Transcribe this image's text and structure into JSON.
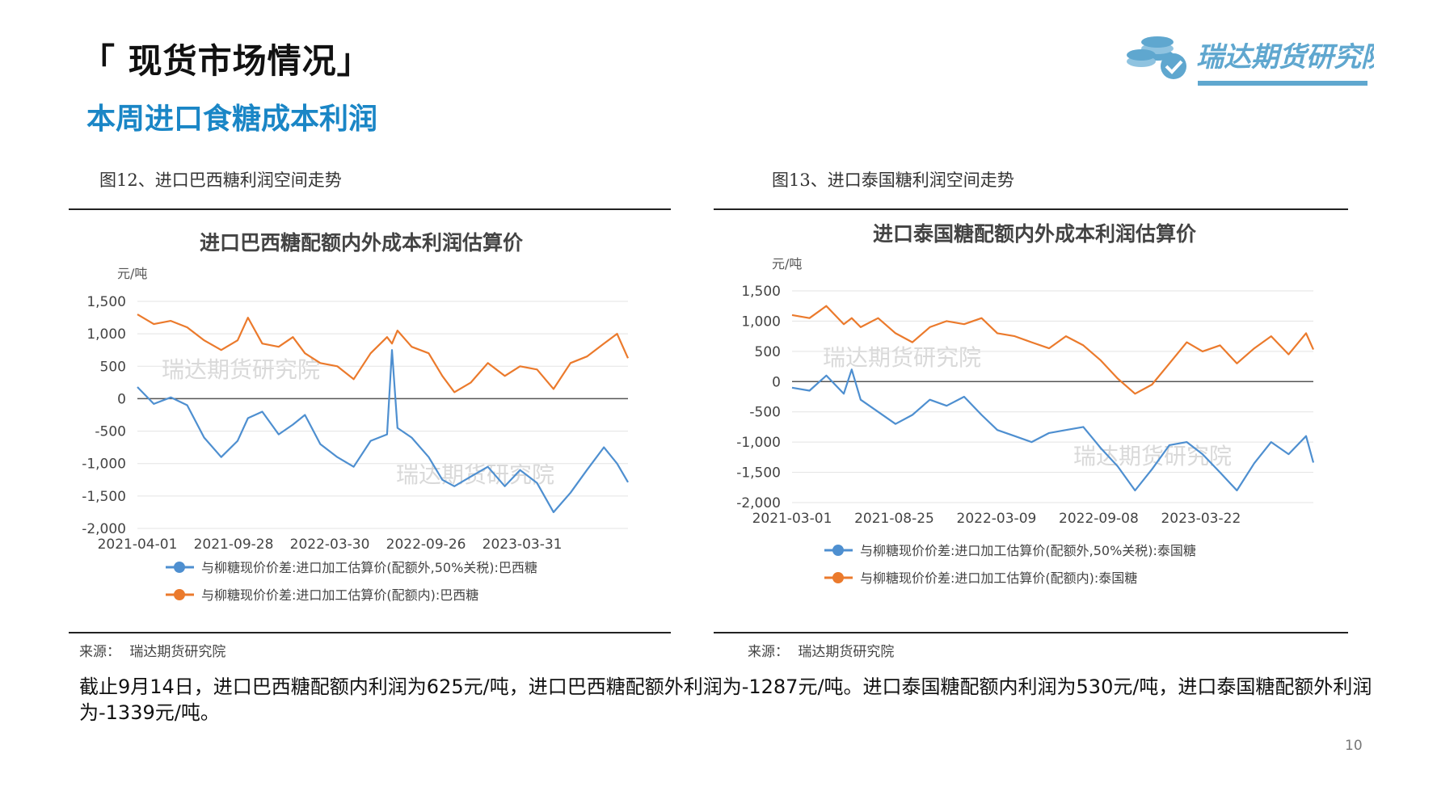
{
  "page": {
    "section_title": "「 现货市场情况」",
    "subtitle": "本周进口食糖成本利润",
    "logo_text": "瑞达期货研究院",
    "summary": "截止9月14日，进口巴西糖配额内利润为625元/吨，进口巴西糖配额外利润为-1287元/吨。进口泰国糖配额内利润为530元/吨，进口泰国糖配额外利润为-1339元/吨。",
    "page_number": "10"
  },
  "figures": [
    {
      "caption": "图12、进口巴西糖利润空间走势",
      "source_label": "来源：",
      "source_name": "瑞达期货研究院"
    },
    {
      "caption": "图13、进口泰国糖利润空间走势",
      "source_label": "来源：",
      "source_name": "瑞达期货研究院"
    }
  ],
  "colors": {
    "blue_series": "#4e8fd0",
    "orange_series": "#eb7a2c",
    "accent": "#1a86c6",
    "logo": "#5fa7cf"
  },
  "chart_data": [
    {
      "type": "line",
      "title": "进口巴西糖配额内外成本利润估算价",
      "ylabel": "元/吨",
      "watermark": "瑞达期货研究院",
      "ylim": [
        -2000,
        1500
      ],
      "yticks": [
        1500,
        1000,
        500,
        0,
        -500,
        -1000,
        -1500,
        -2000
      ],
      "ytick_labels": [
        "1,500",
        "1,000",
        "500",
        "0",
        "-500",
        "-1,000",
        "-1,500",
        "-2,000"
      ],
      "xlim": [
        "2021-04-01",
        "2023-09-14"
      ],
      "xtick_labels": [
        "2021-04-01",
        "2021-09-28",
        "2022-03-30",
        "2022-09-26",
        "2023-03-31"
      ],
      "grid": true,
      "legend_position": "bottom",
      "series": [
        {
          "name": "与柳糖现价价差:进口加工估算价(配额外,50%关税):巴西糖",
          "color": "#4e8fd0",
          "x": [
            "2021-04-01",
            "2021-05-01",
            "2021-06-01",
            "2021-07-01",
            "2021-08-01",
            "2021-09-01",
            "2021-10-01",
            "2021-10-20",
            "2021-11-15",
            "2021-12-15",
            "2022-01-10",
            "2022-02-01",
            "2022-03-01",
            "2022-04-01",
            "2022-05-01",
            "2022-06-01",
            "2022-07-01",
            "2022-07-10",
            "2022-07-20",
            "2022-08-15",
            "2022-09-15",
            "2022-10-10",
            "2022-11-01",
            "2022-12-01",
            "2023-01-01",
            "2023-02-01",
            "2023-03-01",
            "2023-04-01",
            "2023-05-01",
            "2023-06-01",
            "2023-07-01",
            "2023-08-01",
            "2023-08-25",
            "2023-09-14"
          ],
          "y": [
            180,
            -80,
            20,
            -100,
            -600,
            -900,
            -650,
            -300,
            -200,
            -550,
            -400,
            -250,
            -700,
            -900,
            -1050,
            -650,
            -550,
            750,
            -450,
            -600,
            -900,
            -1250,
            -1350,
            -1200,
            -1050,
            -1350,
            -1100,
            -1300,
            -1750,
            -1450,
            -1100,
            -750,
            -1000,
            -1287
          ]
        },
        {
          "name": "与柳糖现价价差:进口加工估算价(配额内):巴西糖",
          "color": "#eb7a2c",
          "x": [
            "2021-04-01",
            "2021-05-01",
            "2021-06-01",
            "2021-07-01",
            "2021-08-01",
            "2021-09-01",
            "2021-10-01",
            "2021-10-20",
            "2021-11-15",
            "2021-12-15",
            "2022-01-10",
            "2022-02-01",
            "2022-03-01",
            "2022-04-01",
            "2022-05-01",
            "2022-06-01",
            "2022-07-01",
            "2022-07-10",
            "2022-07-20",
            "2022-08-15",
            "2022-09-15",
            "2022-10-10",
            "2022-11-01",
            "2022-12-01",
            "2023-01-01",
            "2023-02-01",
            "2023-03-01",
            "2023-04-01",
            "2023-05-01",
            "2023-06-01",
            "2023-07-01",
            "2023-08-01",
            "2023-08-25",
            "2023-09-14"
          ],
          "y": [
            1300,
            1150,
            1200,
            1100,
            900,
            750,
            900,
            1250,
            850,
            800,
            950,
            700,
            550,
            500,
            300,
            700,
            950,
            850,
            1050,
            800,
            700,
            350,
            100,
            250,
            550,
            350,
            500,
            450,
            150,
            550,
            650,
            850,
            1000,
            625
          ]
        }
      ]
    },
    {
      "type": "line",
      "title": "进口泰国糖配额内外成本利润估算价",
      "ylabel": "元/吨",
      "watermark": "瑞达期货研究院",
      "ylim": [
        -2000,
        1500
      ],
      "yticks": [
        1500,
        1000,
        500,
        0,
        -500,
        -1000,
        -1500,
        -2000
      ],
      "ytick_labels": [
        "1,500",
        "1,000",
        "500",
        "0",
        "-500",
        "-1,000",
        "-1,500",
        "-2,000"
      ],
      "xlim": [
        "2021-03-01",
        "2023-09-14"
      ],
      "xtick_labels": [
        "2021-03-01",
        "2021-08-25",
        "2022-03-09",
        "2022-09-08",
        "2023-03-22"
      ],
      "grid": true,
      "legend_position": "bottom",
      "series": [
        {
          "name": "与柳糖现价价差:进口加工估算价(配额外,50%关税):泰国糖",
          "color": "#4e8fd0",
          "x": [
            "2021-03-01",
            "2021-04-01",
            "2021-05-01",
            "2021-06-01",
            "2021-06-15",
            "2021-07-01",
            "2021-08-01",
            "2021-09-01",
            "2021-10-01",
            "2021-11-01",
            "2021-12-01",
            "2022-01-01",
            "2022-02-01",
            "2022-03-01",
            "2022-04-01",
            "2022-05-01",
            "2022-06-01",
            "2022-07-01",
            "2022-08-01",
            "2022-09-01",
            "2022-10-01",
            "2022-11-01",
            "2022-12-01",
            "2023-01-01",
            "2023-02-01",
            "2023-03-01",
            "2023-04-01",
            "2023-05-01",
            "2023-06-01",
            "2023-07-01",
            "2023-08-01",
            "2023-09-01",
            "2023-09-14"
          ],
          "y": [
            -100,
            -150,
            100,
            -200,
            200,
            -300,
            -500,
            -700,
            -550,
            -300,
            -400,
            -250,
            -550,
            -800,
            -900,
            -1000,
            -850,
            -800,
            -750,
            -1100,
            -1400,
            -1800,
            -1450,
            -1050,
            -1000,
            -1200,
            -1500,
            -1800,
            -1350,
            -1000,
            -1200,
            -900,
            -1339
          ]
        },
        {
          "name": "与柳糖现价价差:进口加工估算价(配额内):泰国糖",
          "color": "#eb7a2c",
          "x": [
            "2021-03-01",
            "2021-04-01",
            "2021-05-01",
            "2021-06-01",
            "2021-06-15",
            "2021-07-01",
            "2021-08-01",
            "2021-09-01",
            "2021-10-01",
            "2021-11-01",
            "2021-12-01",
            "2022-01-01",
            "2022-02-01",
            "2022-03-01",
            "2022-04-01",
            "2022-05-01",
            "2022-06-01",
            "2022-07-01",
            "2022-08-01",
            "2022-09-01",
            "2022-10-01",
            "2022-11-01",
            "2022-12-01",
            "2023-01-01",
            "2023-02-01",
            "2023-03-01",
            "2023-04-01",
            "2023-05-01",
            "2023-06-01",
            "2023-07-01",
            "2023-08-01",
            "2023-09-01",
            "2023-09-14"
          ],
          "y": [
            1100,
            1050,
            1250,
            950,
            1050,
            900,
            1050,
            800,
            650,
            900,
            1000,
            950,
            1050,
            800,
            750,
            650,
            550,
            750,
            600,
            350,
            50,
            -200,
            -50,
            300,
            650,
            500,
            600,
            300,
            550,
            750,
            450,
            800,
            530
          ]
        }
      ]
    }
  ]
}
